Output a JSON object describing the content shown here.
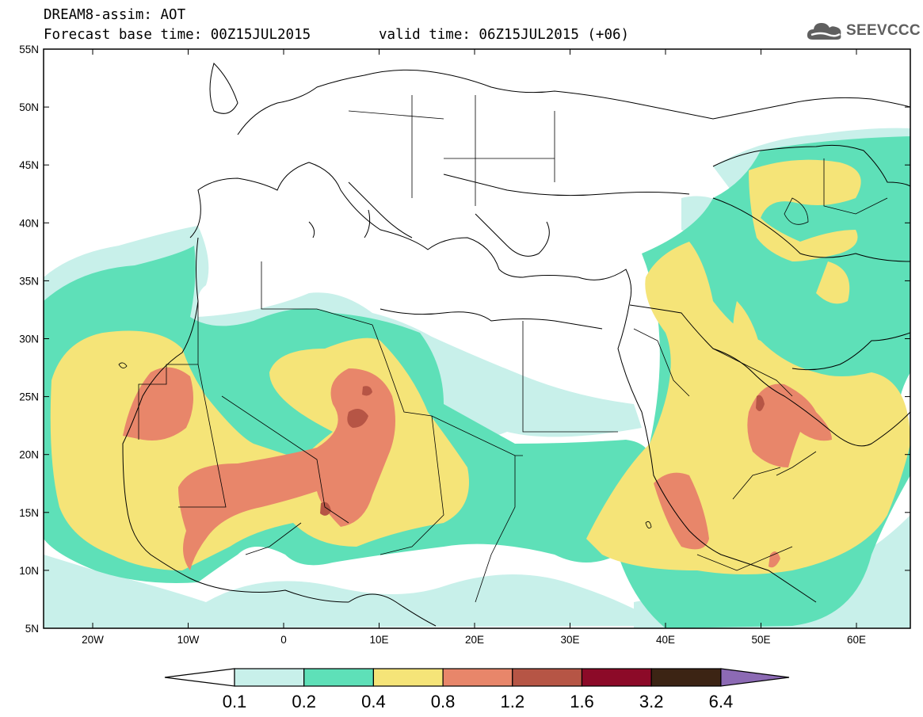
{
  "header": {
    "line1": "DREAM8-assim: AOT",
    "line2": "Forecast base time: 00Z15JUL2015",
    "valid": "valid time: 06Z15JUL2015 (+06)"
  },
  "logo": {
    "text": "SEEVCCC",
    "icon": "cloud-icon"
  },
  "map": {
    "x_ticks": [
      "20W",
      "10W",
      "0",
      "10E",
      "20E",
      "30E",
      "40E",
      "50E",
      "60E"
    ],
    "y_ticks": [
      "55N",
      "50N",
      "45N",
      "40N",
      "35N",
      "30N",
      "25N",
      "20N",
      "15N",
      "10N",
      "5N"
    ],
    "bins_colors": [
      "#c8f0ea",
      "#5ee0b8",
      "#f5e478",
      "#e8866a",
      "#b65545",
      "#8c0a28",
      "#3c2414",
      "#8c6ab4"
    ]
  },
  "colorbar": {
    "labels": [
      "0.1",
      "0.2",
      "0.4",
      "0.8",
      "1.2",
      "1.6",
      "3.2",
      "6.4"
    ],
    "colors": [
      "#c8f0ea",
      "#5ee0b8",
      "#f5e478",
      "#e8866a",
      "#b65545",
      "#8c0a28",
      "#3c2414"
    ],
    "under_color": "#ffffff",
    "over_color": "#8c6ab4"
  }
}
